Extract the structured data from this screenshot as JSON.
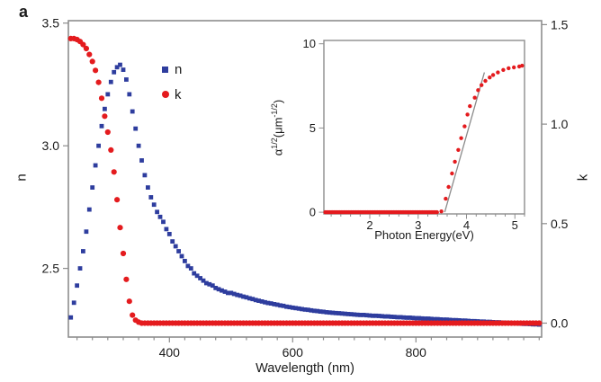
{
  "panel_label": "a",
  "colors": {
    "n_series": "#2e3d9e",
    "k_series": "#e41b1e",
    "axis": "#8d8d8d",
    "fit_line": "#8a8a8a",
    "text": "#1b1b1b"
  },
  "labels": {
    "wavelength": "Wavelength (nm)",
    "n_axis": "n",
    "k_axis": "k",
    "photon_energy": "Photon Energy(eV)",
    "alpha_base": "α",
    "alpha_sup": "1/2",
    "alpha_mid": "(μm",
    "alpha_sup2": "-1/2",
    "alpha_end": ")",
    "legend_n": "n",
    "legend_k": "k"
  },
  "chart_data": [
    {
      "id": "main",
      "type": "scatter",
      "xlabel": "Wavelength (nm)",
      "ylabel_left": "n",
      "ylabel_right": "k",
      "xlim": [
        236,
        1004
      ],
      "x_ticks": [
        400,
        600,
        800
      ],
      "x_tick_labels": [
        "400",
        "600",
        "800"
      ],
      "x_minor_start": 250,
      "x_minor_step": 25,
      "x_minor_end": 1000,
      "ylim_left": [
        2.22,
        3.51
      ],
      "y_ticks_left": [
        2.5,
        3.0,
        3.5
      ],
      "y_tick_labels_left": [
        "2.5",
        "3.0",
        "3.5"
      ],
      "ylim_right": [
        -0.07,
        1.52
      ],
      "y_ticks_right": [
        0.0,
        0.5,
        1.0,
        1.5
      ],
      "y_tick_labels_right": [
        "0.0",
        "0.5",
        "1.0",
        "1.5"
      ],
      "grid": false,
      "legend_position": "upper-left-inside",
      "series": [
        {
          "name": "n",
          "marker": "square",
          "axis": "left",
          "segments": [
            {
              "x0": 240,
              "dx": 5,
              "y": [
                2.3,
                2.36,
                2.43,
                2.5,
                2.57,
                2.65,
                2.74,
                2.83,
                2.92,
                3.0,
                3.08,
                3.15,
                3.21,
                3.26,
                3.3,
                3.32,
                3.33,
                3.31,
                3.27,
                3.21,
                3.14,
                3.07,
                3.0,
                2.94,
                2.88,
                2.83,
                2.79,
                2.76,
                2.73,
                2.71,
                2.69,
                2.66,
                2.64,
                2.61,
                2.59,
                2.57,
                2.55,
                2.53,
                2.51,
                2.5,
                2.48,
                2.47,
                2.46,
                2.45,
                2.44,
                2.435,
                2.43,
                2.42,
                2.415,
                2.41,
                2.405,
                2.4,
                2.4,
                2.396,
                2.392,
                2.389,
                2.385,
                2.382,
                2.378,
                2.375,
                2.371,
                2.368,
                2.365,
                2.362,
                2.359,
                2.357,
                2.354,
                2.352,
                2.349,
                2.347,
                2.344,
                2.342,
                2.34,
                2.338,
                2.336,
                2.334,
                2.332,
                2.331,
                2.329,
                2.327,
                2.326,
                2.324,
                2.323,
                2.321,
                2.32,
                2.319,
                2.318,
                2.317,
                2.316,
                2.315,
                2.314,
                2.313,
                2.312,
                2.311,
                2.31,
                2.31,
                2.309,
                2.308,
                2.307,
                2.307,
                2.306,
                2.305,
                2.304,
                2.304,
                2.303,
                2.302,
                2.301,
                2.301,
                2.3,
                2.299,
                2.299,
                2.298,
                2.297,
                2.297,
                2.296,
                2.295,
                2.295,
                2.294,
                2.293,
                2.293,
                2.292,
                2.291,
                2.291,
                2.29,
                2.289,
                2.289,
                2.288,
                2.287,
                2.287,
                2.286,
                2.285,
                2.285,
                2.284,
                2.283,
                2.283,
                2.282,
                2.282,
                2.281,
                2.28,
                2.28,
                2.279,
                2.278,
                2.278,
                2.277,
                2.276,
                2.276,
                2.275,
                2.274,
                2.274,
                2.273,
                2.272,
                2.272,
                2.271
              ]
            }
          ]
        },
        {
          "name": "k",
          "marker": "circle",
          "axis": "right",
          "segments": [
            {
              "x0": 240,
              "dx": 5,
              "y": [
                1.43,
                1.43,
                1.425,
                1.415,
                1.4,
                1.38,
                1.35,
                1.315,
                1.27,
                1.21,
                1.13,
                1.04,
                0.96,
                0.87,
                0.76,
                0.62,
                0.48,
                0.35,
                0.22,
                0.11,
                0.04,
                0.015,
                0.005
              ]
            },
            {
              "x0": 355,
              "dx": 5,
              "x_end": 1000,
              "y_const": 0
            }
          ]
        }
      ]
    },
    {
      "id": "inset",
      "type": "scatter",
      "xlabel": "Photon Energy(eV)",
      "ylabel": "α1/2(μm-1/2)",
      "xlim": [
        1.05,
        5.2
      ],
      "x_ticks": [
        2,
        3,
        4,
        5
      ],
      "x_tick_labels": [
        "2",
        "3",
        "4",
        "5"
      ],
      "x_minor_start": 1.2,
      "x_minor_step": 0.2,
      "x_minor_end": 5.2,
      "ylim": [
        -0.1,
        10.2
      ],
      "y_ticks": [
        0,
        5,
        10
      ],
      "y_tick_labels": [
        "0",
        "5",
        "10"
      ],
      "grid": false,
      "fit_line": {
        "x1": 3.55,
        "y1": 0,
        "x2": 4.37,
        "y2": 8.3
      },
      "series": [
        {
          "name": "alpha_sqrt",
          "marker": "circle",
          "segments": [
            {
              "x0": 1.08,
              "dx": 0.03,
              "x_end": 3.39,
              "y_const": 0
            },
            {
              "x": [
                3.48,
                3.57,
                3.63,
                3.7,
                3.76,
                3.83,
                3.89,
                3.96,
                4.02,
                4.07,
                4.17,
                4.24,
                4.31,
                4.39,
                4.48,
                4.55,
                4.65,
                4.76,
                4.87,
                4.98,
                5.09,
                5.15
              ],
              "y": [
                0.05,
                0.8,
                1.5,
                2.3,
                3.0,
                3.7,
                4.4,
                5.1,
                5.8,
                6.3,
                6.8,
                7.25,
                7.55,
                7.8,
                8.0,
                8.15,
                8.3,
                8.45,
                8.55,
                8.6,
                8.65,
                8.7
              ]
            }
          ]
        }
      ]
    }
  ]
}
